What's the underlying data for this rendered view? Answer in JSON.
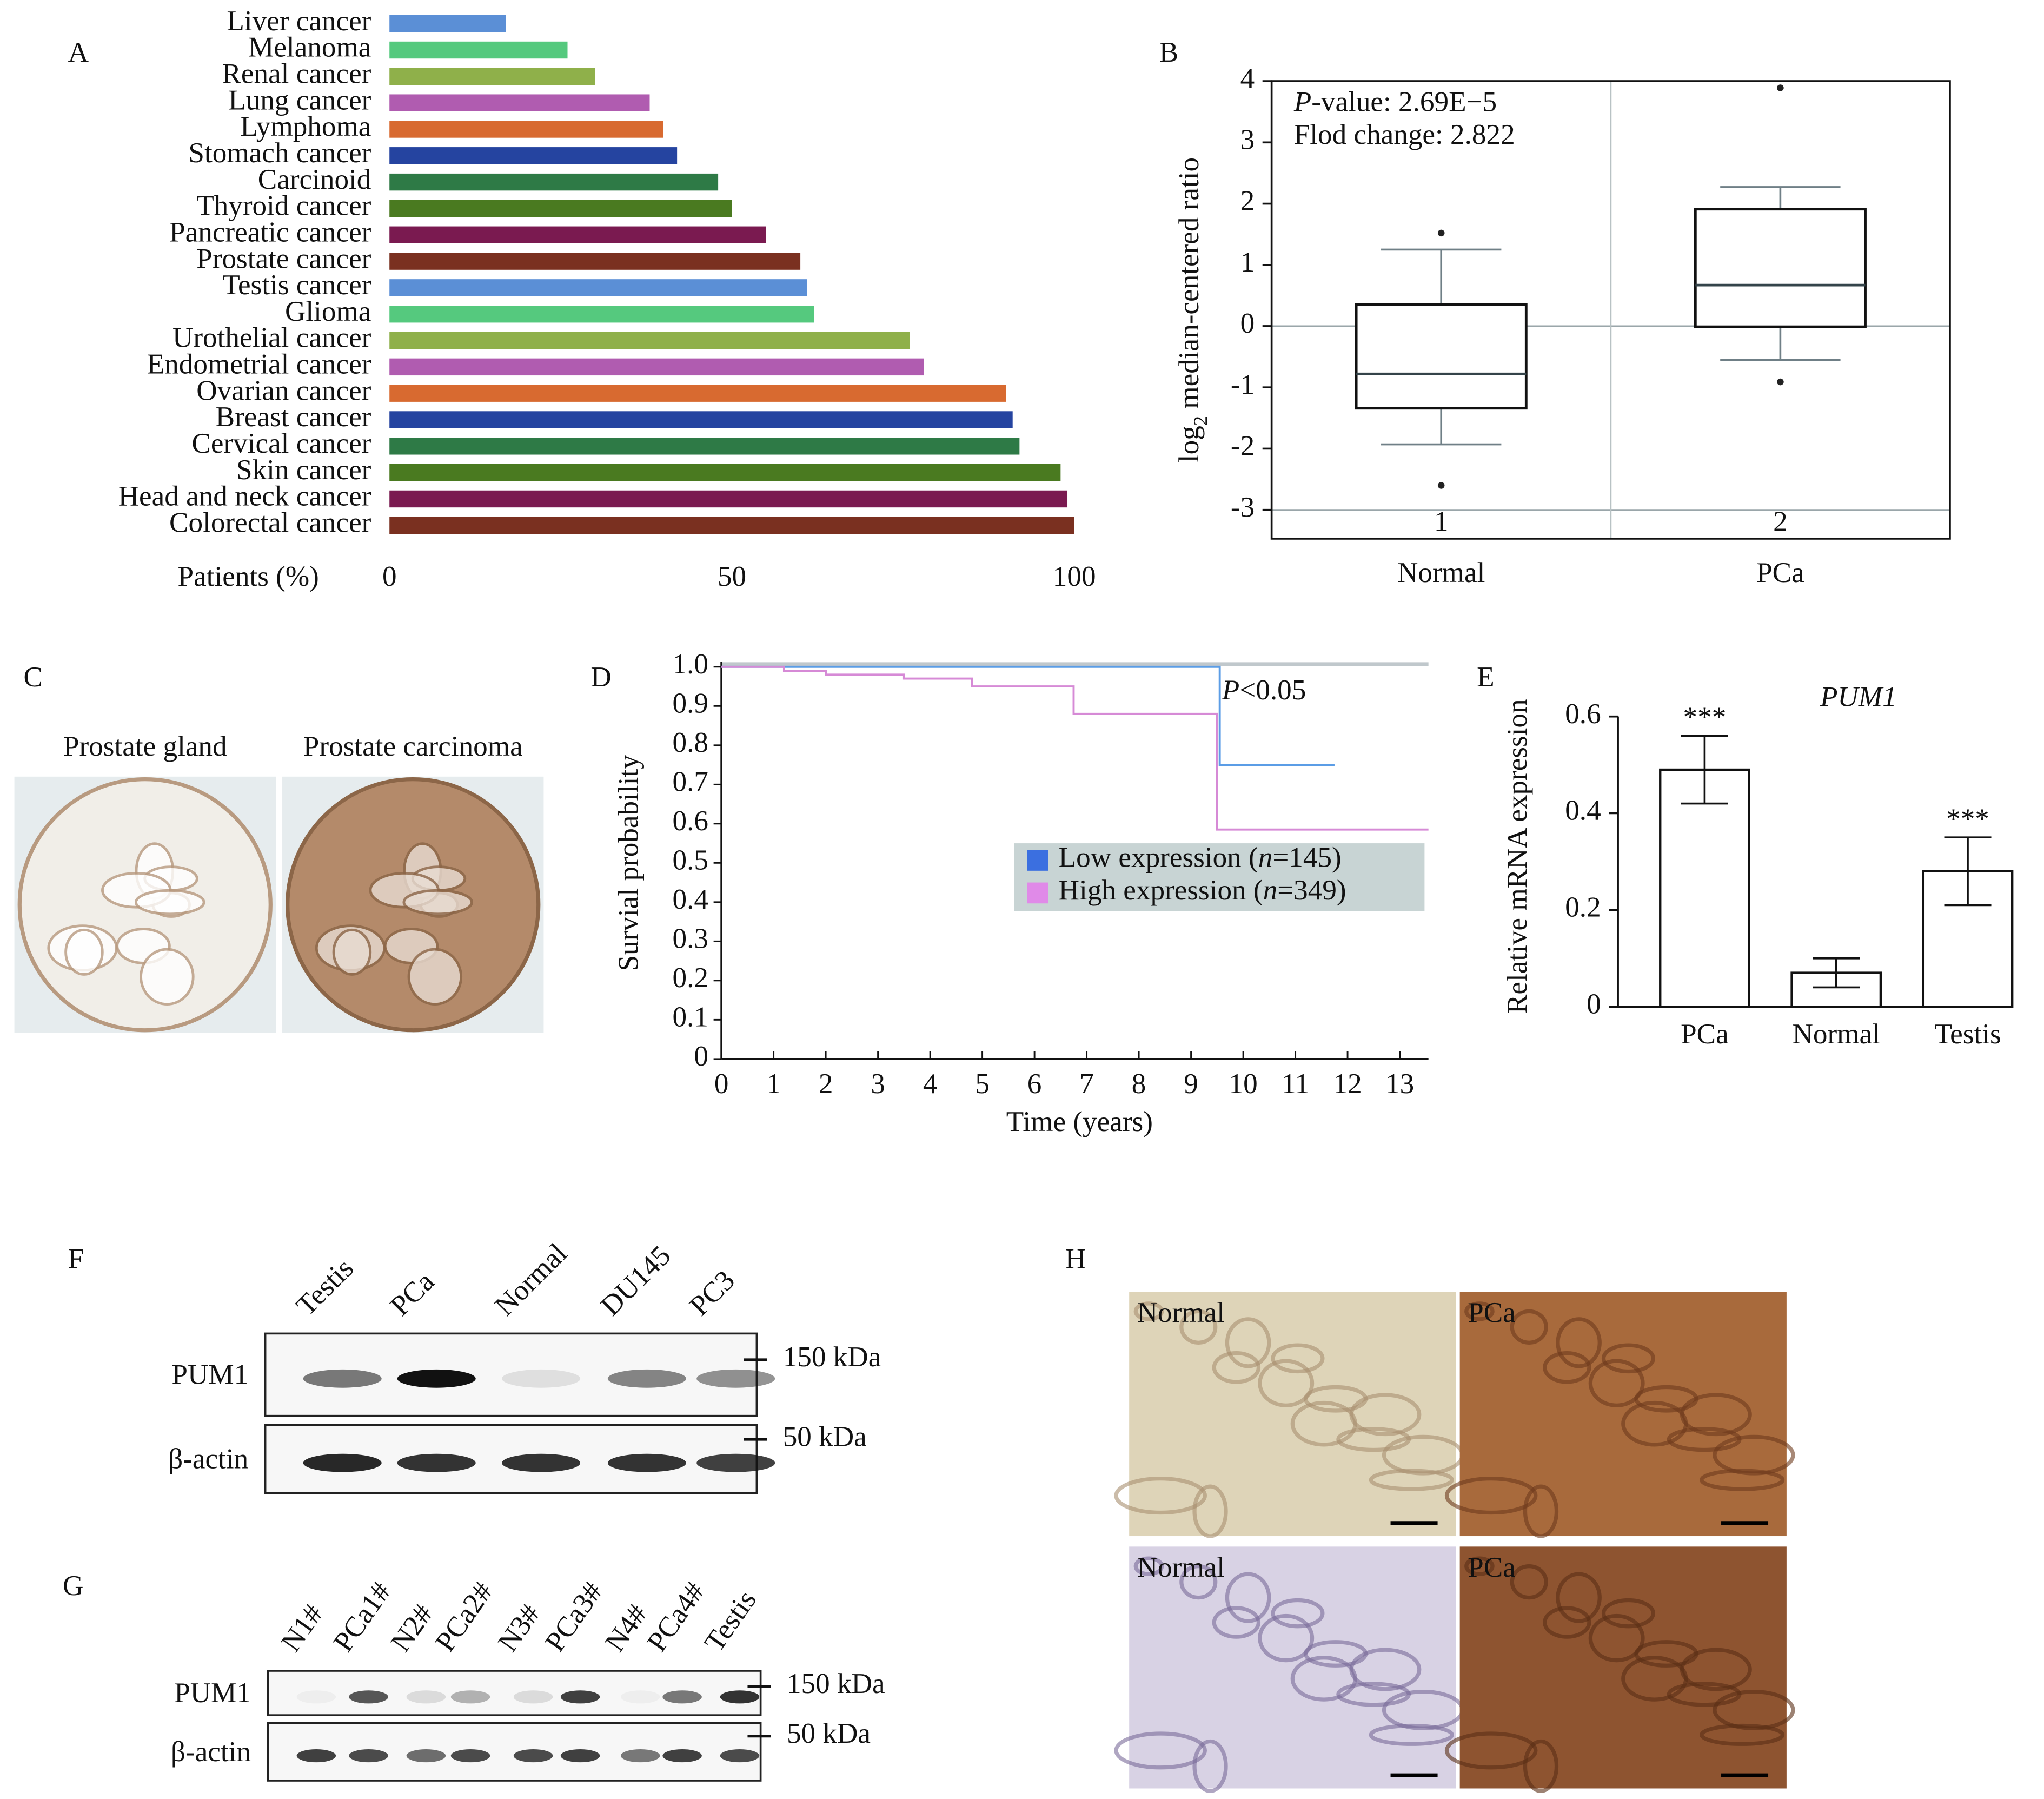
{
  "chart_data": [
    {
      "type": "hbar",
      "panel_label": "A",
      "categories": [
        "Liver cancer",
        "Melanoma",
        "Renal cancer",
        "Lung cancer",
        "Lymphoma",
        "Stomach cancer",
        "Carcinoid",
        "Thyroid cancer",
        "Pancreatic cancer",
        "Prostate cancer",
        "Testis cancer",
        "Glioma",
        "Urothelial cancer",
        "Endometrial cancer",
        "Ovarian cancer",
        "Breast cancer",
        "Cervical cancer",
        "Skin cancer",
        "Head and neck cancer",
        "Colorectal cancer"
      ],
      "values": [
        17,
        26,
        30,
        38,
        40,
        42,
        48,
        50,
        55,
        60,
        61,
        62,
        76,
        78,
        90,
        91,
        92,
        98,
        99,
        100
      ],
      "colors": [
        "#5b8fd6",
        "#55c97e",
        "#8fb04a",
        "#b05cb0",
        "#d86a30",
        "#2544a0",
        "#2e7a46",
        "#4a7a20",
        "#7a1a50",
        "#7a3020",
        "#5b8fd6",
        "#55c97e",
        "#8fb04a",
        "#b05cb0",
        "#d86a30",
        "#2544a0",
        "#2e7a46",
        "#4a7a20",
        "#7a1a50",
        "#7a3020"
      ],
      "x_label": "Patients (%)",
      "xlim": [
        0,
        100
      ],
      "xticks": [
        0,
        50,
        100
      ]
    },
    {
      "type": "box",
      "panel_label": "B",
      "categories": [
        "Normal",
        "PCa"
      ],
      "group_ids": [
        "1",
        "2"
      ],
      "boxes": [
        {
          "whisker_low": -1.93,
          "q1": -1.34,
          "median": -0.78,
          "q3": 0.35,
          "whisker_high": 1.25,
          "outliers": [
            1.52,
            -2.6
          ]
        },
        {
          "whisker_low": -0.55,
          "q1": -0.01,
          "median": 0.67,
          "q3": 1.91,
          "whisker_high": 2.27,
          "outliers": [
            3.89,
            -0.91
          ]
        }
      ],
      "annotations": [
        [
          {
            "text": "P",
            "style": "italic"
          },
          {
            "text": "-value: 2.69E−5"
          }
        ],
        [
          {
            "text": "Flod change: 2.822"
          }
        ]
      ],
      "y_label": [
        {
          "text": "log"
        },
        {
          "text": "2",
          "style": "sub"
        },
        {
          "text": " median-centered ratio"
        }
      ],
      "ylim": [
        -3.47,
        4
      ],
      "yticks": [
        4,
        3,
        2,
        1,
        0,
        -1,
        -2,
        -3
      ],
      "ref_lines": [
        0,
        -3
      ]
    },
    {
      "type": "step",
      "panel_label": "D",
      "series": [
        {
          "name": [
            {
              "text": "Low expression ("
            },
            {
              "text": "n",
              "style": "italic"
            },
            {
              "text": "=145)"
            }
          ],
          "color": "#5b9de6",
          "legend_color": "#3b6fe0",
          "x": [
            0,
            9.55,
            9.55,
            11.75
          ],
          "values": [
            1,
            1,
            0.75,
            0.75
          ]
        },
        {
          "name": [
            {
              "text": "High expression ("
            },
            {
              "text": "n",
              "style": "italic"
            },
            {
              "text": "=349)"
            }
          ],
          "color": "#d68ad6",
          "legend_color": "#e08ae8",
          "x": [
            0,
            1.2,
            1.2,
            2.0,
            2.0,
            3.5,
            3.5,
            4.8,
            4.8,
            6.75,
            6.75,
            9.5,
            9.5,
            13.55
          ],
          "values": [
            1,
            1,
            0.99,
            0.99,
            0.98,
            0.98,
            0.97,
            0.97,
            0.95,
            0.95,
            0.88,
            0.88,
            0.585,
            0.585
          ]
        }
      ],
      "annotation": [
        {
          "text": "P",
          "style": "italic"
        },
        {
          "text": "<0.05"
        }
      ],
      "x_label": "Time (years)",
      "y_label": "Survial probability",
      "xlim": [
        0,
        13.55
      ],
      "xticks": [
        0,
        1,
        2,
        3,
        4,
        5,
        6,
        7,
        8,
        9,
        10,
        11,
        12,
        13
      ],
      "ylim": [
        0,
        1
      ],
      "yticks": [
        0,
        0.1,
        0.2,
        0.3,
        0.4,
        0.5,
        0.6,
        0.7,
        0.8,
        0.9,
        {
          "value": 1,
          "label": "1.0"
        }
      ]
    },
    {
      "type": "bar",
      "panel_label": "E",
      "title": "PUM1",
      "categories": [
        "PCa",
        "Normal",
        "Testis"
      ],
      "values": [
        0.49,
        0.07,
        0.28
      ],
      "errors": [
        0.07,
        0.03,
        0.07
      ],
      "significance": [
        "***",
        null,
        "***"
      ],
      "y_label": "Relative mRNA expression",
      "ylim": [
        0,
        0.6
      ],
      "yticks": [
        0,
        0.2,
        0.4,
        0.6
      ]
    }
  ],
  "panels": {
    "C": {
      "panel_label": "C",
      "images": [
        "Prostate gland",
        "Prostate carcinoma"
      ]
    },
    "F": {
      "panel_label": "F",
      "lanes": [
        "Testis",
        "PCa",
        "Normal",
        "DU145",
        "PC3"
      ],
      "rows": [
        "PUM1",
        "β-actin"
      ],
      "markers": [
        "150 kDa",
        "50 kDa"
      ]
    },
    "G": {
      "panel_label": "G",
      "lanes": [
        "N1#",
        "PCa1#",
        "N2#",
        "PCa2#",
        "N3#",
        "PCa3#",
        "N4#",
        "PCa4#",
        "Testis"
      ],
      "rows": [
        "PUM1",
        "β-actin"
      ],
      "markers": [
        "150 kDa",
        "50 kDa"
      ]
    },
    "H": {
      "panel_label": "H",
      "images": [
        "Normal",
        "PCa",
        "Normal",
        "PCa"
      ]
    }
  }
}
